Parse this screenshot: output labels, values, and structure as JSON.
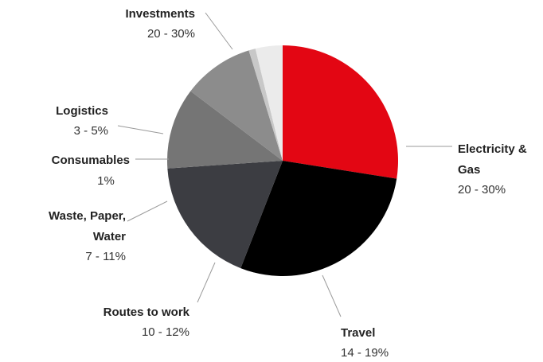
{
  "chart_data": {
    "type": "pie",
    "start_angle_deg": 270,
    "direction": "clockwise",
    "categories": [
      "Investments",
      "Electricity & Gas",
      "Travel",
      "Routes to work",
      "Waste, Paper, Water",
      "Consumables",
      "Logistics"
    ],
    "label_lines": [
      [
        "Investments"
      ],
      [
        "Electricity &",
        "Gas"
      ],
      [
        "Travel"
      ],
      [
        "Routes to work"
      ],
      [
        "Waste, Paper,",
        "Water"
      ],
      [
        "Consumables"
      ],
      [
        "Logistics"
      ]
    ],
    "ranges": [
      "20 - 30%",
      "20 - 30%",
      "14 - 19%",
      "10 - 12%",
      "7 - 11%",
      "1%",
      "3 - 5%"
    ],
    "values": [
      29,
      30,
      19,
      12,
      10.5,
      1,
      4
    ],
    "colors": [
      "#e30613",
      "#000000",
      "#3c3d42",
      "#757575",
      "#8c8c8c",
      "#c8c8c8",
      "#ebebeb"
    ]
  }
}
